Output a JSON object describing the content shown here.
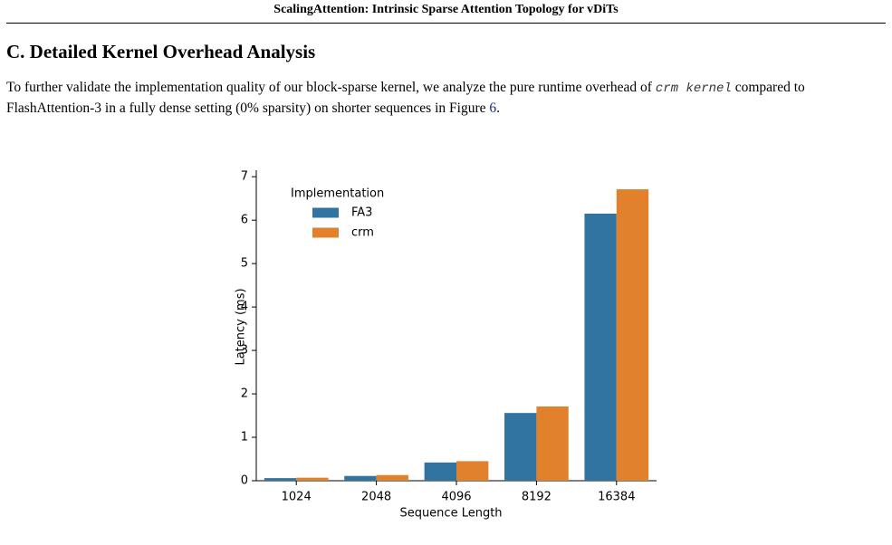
{
  "header": {
    "title": "ScalingAttention: Intrinsic Sparse Attention Topology for vDiTs"
  },
  "section": {
    "title": "C. Detailed Kernel Overhead Analysis",
    "paragraph": [
      "To further validate the implementation quality of our block-sparse kernel, we analyze the pure runtime overhead of ",
      "crm kernel",
      " compared to FlashAttention-3 in a fully dense setting (0% sparsity) on shorter sequences in Figure ",
      "6",
      "."
    ]
  },
  "chart_data": {
    "type": "bar",
    "categories": [
      "1024",
      "2048",
      "4096",
      "8192",
      "16384"
    ],
    "series": [
      {
        "name": "FA3",
        "color": "#3274a1",
        "values": [
          0.06,
          0.11,
          0.42,
          1.56,
          6.15
        ]
      },
      {
        "name": "crm",
        "color": "#e1812c",
        "values": [
          0.07,
          0.13,
          0.45,
          1.71,
          6.71
        ]
      }
    ],
    "xlabel": "Sequence Length",
    "ylabel": "Latency (ms)",
    "legend_title": "Implementation",
    "legend": "upper-left",
    "ylim": [
      0,
      7.15
    ],
    "yticks": [
      0,
      1,
      2,
      3,
      4,
      5,
      6,
      7
    ]
  }
}
